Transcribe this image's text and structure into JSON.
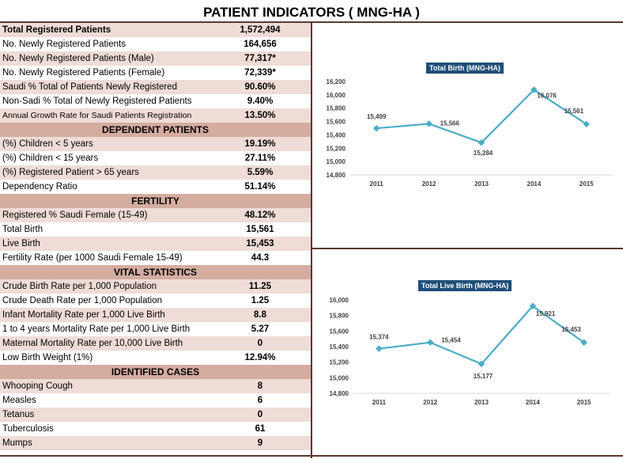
{
  "page_title": "PATIENT INDICATORS ( MNG-HA )",
  "table": {
    "general": [
      {
        "label": "Total Registered Patients",
        "value": "1,572,494",
        "bold": true
      },
      {
        "label": "No. Newly Registered Patients",
        "value": "164,656"
      },
      {
        "label": "No. Newly Registered Patients (Male)",
        "value": "77,317*"
      },
      {
        "label": "No. Newly Registered Patients (Female)",
        "value": "72,339*"
      },
      {
        "label": "Saudi % Total of Patients Newly Registered",
        "value": "90.60%"
      },
      {
        "label": "Non-Sadi % Total of Newly Registered Patients",
        "value": "9.40%"
      },
      {
        "label": "Annual Growth Rate for Saudi Patients Registration",
        "value": "13.50%",
        "small": true
      }
    ],
    "dependent_header": "DEPENDENT PATIENTS",
    "dependent": [
      {
        "label": "(%) Children < 5 years",
        "value": "19.19%"
      },
      {
        "label": "(%) Children < 15 years",
        "value": "27.11%"
      },
      {
        "label": "(%) Registered Patient > 65 years",
        "value": "5.59%"
      },
      {
        "label": "Dependency Ratio",
        "value": "51.14%"
      }
    ],
    "fertility_header": "FERTILITY",
    "fertility": [
      {
        "label": "Registered % Saudi Female (15-49)",
        "value": "48.12%"
      },
      {
        "label": "Total Birth",
        "value": "15,561"
      },
      {
        "label": "Live Birth",
        "value": "15,453"
      },
      {
        "label": "Fertility Rate (per 1000 Saudi Female 15-49)",
        "value": "44.3"
      }
    ],
    "vital_header": "VITAL STATISTICS",
    "vital": [
      {
        "label": "Crude Birth Rate per 1,000 Population",
        "value": "11.25"
      },
      {
        "label": "Crude Death Rate per 1,000 Population",
        "value": "1.25"
      },
      {
        "label": "Infant Mortality Rate per 1,000 Live Birth",
        "value": "8.8"
      },
      {
        "label": "1 to 4 years Mortality Rate per 1,000 Live Birth",
        "value": "5.27"
      },
      {
        "label": "Maternal Mortality Rate per 10,000 Live Birth",
        "value": "0"
      },
      {
        "label": "Low Birth Weight (1%)",
        "value": "12.94%"
      }
    ],
    "cases_header": "IDENTIFIED CASES",
    "cases": [
      {
        "label": "Whooping Cough",
        "value": "8"
      },
      {
        "label": "Measles",
        "value": "6"
      },
      {
        "label": "Tetanus",
        "value": "0"
      },
      {
        "label": "Tuberculosis",
        "value": "61"
      },
      {
        "label": "Mumps",
        "value": "9"
      }
    ]
  },
  "colors": {
    "line": "#4bacc6",
    "marker": "#4bacc6",
    "header_band": "#d4aca0",
    "alt_row": "#efdcd6",
    "rule": "#5a3a2e",
    "title_badge": "#1f4e79"
  },
  "chart_data": [
    {
      "type": "line",
      "title": "Total Birth (MNG-HA)",
      "x": [
        "2011",
        "2012",
        "2013",
        "2014",
        "2015"
      ],
      "values": [
        15499,
        15566,
        15284,
        16076,
        15561
      ],
      "data_labels": [
        "15,499",
        "15,566",
        "15,284",
        "16,076",
        "15,561"
      ],
      "ylim": [
        14800,
        16200
      ],
      "yticks": [
        14800,
        15000,
        15200,
        15400,
        15600,
        15800,
        16000,
        16200
      ],
      "ytick_labels": [
        "14,800",
        "15,000",
        "15,200",
        "15,400",
        "15,600",
        "15,800",
        "16,000",
        "16,200"
      ],
      "grid": false,
      "legend": "none"
    },
    {
      "type": "line",
      "title": "Total Live Birth (MNG-HA)",
      "x": [
        "2011",
        "2012",
        "2013",
        "2014",
        "2015"
      ],
      "values": [
        15374,
        15454,
        15177,
        15921,
        15453
      ],
      "data_labels": [
        "15,374",
        "15,454",
        "15,177",
        "15,921",
        "15,453"
      ],
      "ylim": [
        14800,
        16000
      ],
      "yticks": [
        14800,
        15000,
        15200,
        15400,
        15600,
        15800,
        16000
      ],
      "ytick_labels": [
        "14,800",
        "15,000",
        "15,200",
        "15,400",
        "15,600",
        "15,800",
        "16,000"
      ],
      "grid": false,
      "legend": "none"
    }
  ]
}
